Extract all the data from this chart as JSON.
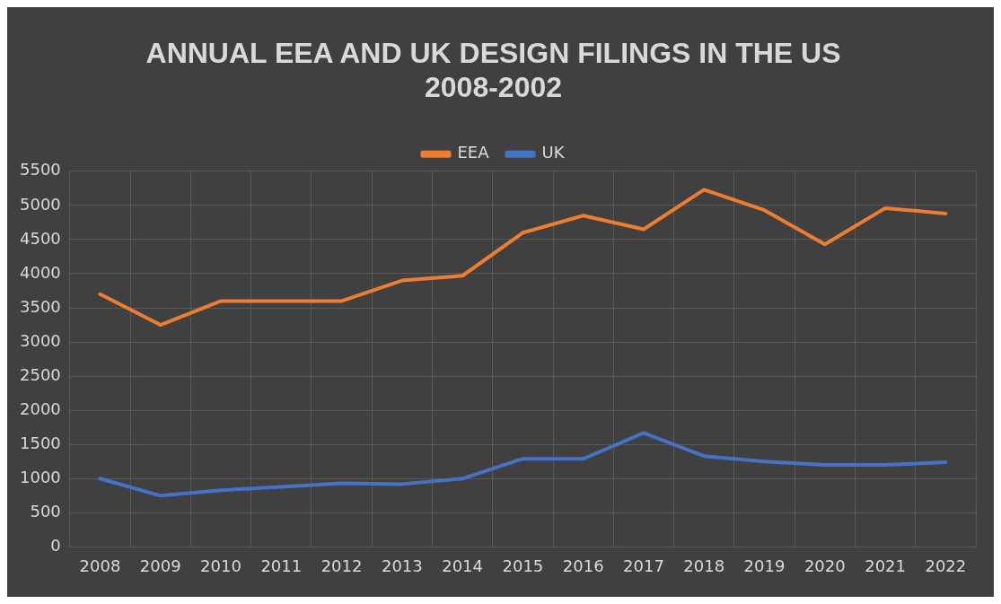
{
  "chart_data": {
    "type": "line",
    "title": "ANNUAL EEA AND UK DESIGN FILINGS IN THE US 2008-2002",
    "categories": [
      "2008",
      "2009",
      "2010",
      "2011",
      "2012",
      "2013",
      "2014",
      "2015",
      "2016",
      "2017",
      "2018",
      "2019",
      "2020",
      "2021",
      "2022"
    ],
    "series": [
      {
        "name": "EEA",
        "color": "#ed7d31",
        "values": [
          3700,
          3250,
          3600,
          3600,
          3600,
          3900,
          3970,
          4600,
          4850,
          4650,
          5230,
          4930,
          4430,
          4960,
          4880
        ]
      },
      {
        "name": "UK",
        "color": "#4472c4",
        "values": [
          1000,
          750,
          830,
          880,
          930,
          920,
          1000,
          1290,
          1290,
          1670,
          1330,
          1250,
          1200,
          1200,
          1240
        ]
      }
    ],
    "ylim": [
      0,
      5500
    ],
    "yticks": [
      0,
      500,
      1000,
      1500,
      2000,
      2500,
      3000,
      3500,
      4000,
      4500,
      5000,
      5500
    ],
    "grid": true,
    "legend": "top",
    "marker": "none",
    "line_style": "solid"
  }
}
